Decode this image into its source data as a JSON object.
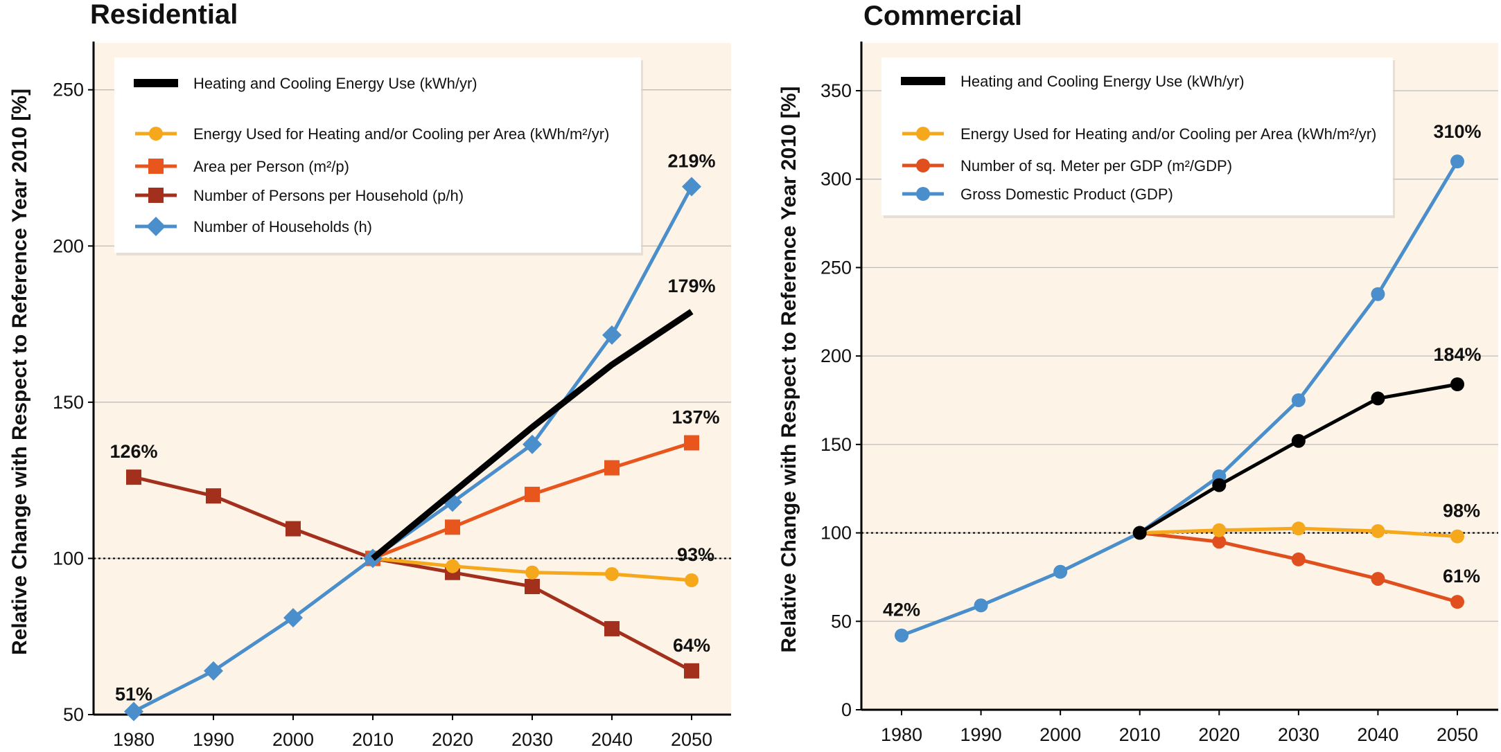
{
  "chart_data": [
    {
      "type": "line",
      "title": "Residential",
      "ylabel": "Relative Change with Respect to Reference Year 2010 [%]",
      "xlabel": "",
      "x": [
        1980,
        1990,
        2000,
        2010,
        2020,
        2030,
        2040,
        2050
      ],
      "ylim": [
        50,
        265
      ],
      "yticks": [
        50,
        100,
        150,
        200,
        250
      ],
      "reference_line": 100,
      "background": "#fdf3e6",
      "series": [
        {
          "name": "Heating and Cooling Energy Use (kWh/yr)",
          "color": "#000000",
          "marker": "none",
          "x": [
            2010,
            2020,
            2030,
            2040,
            2050
          ],
          "values": [
            100,
            121,
            142,
            162,
            179
          ]
        },
        {
          "name": "Energy Used for Heating and/or Cooling per Area (kWh/m²/yr)",
          "color": "#f5a81c",
          "marker": "circle",
          "x": [
            2010,
            2020,
            2030,
            2040,
            2050
          ],
          "values": [
            100,
            97.5,
            95.5,
            95,
            93
          ]
        },
        {
          "name": "Area per Person (m²/p)",
          "color": "#e8561e",
          "marker": "square",
          "x": [
            2010,
            2020,
            2030,
            2040,
            2050
          ],
          "values": [
            100,
            110,
            120.5,
            129,
            137
          ]
        },
        {
          "name": "Number of Persons per Household (p/h)",
          "color": "#a3301d",
          "marker": "square",
          "x": [
            1980,
            1990,
            2000,
            2010,
            2020,
            2030,
            2040,
            2050
          ],
          "values": [
            126,
            120,
            109.5,
            100,
            95.5,
            91,
            77.5,
            64
          ]
        },
        {
          "name": "Number of Households (h)",
          "color": "#4a8fcc",
          "marker": "diamond",
          "x": [
            1980,
            1990,
            2000,
            2010,
            2020,
            2030,
            2040,
            2050
          ],
          "values": [
            51,
            64,
            81,
            100,
            118,
            136.5,
            171.5,
            219
          ]
        }
      ],
      "annotations": [
        {
          "text": "219%",
          "x": 2050,
          "y": 219
        },
        {
          "text": "179%",
          "x": 2050,
          "y": 179
        },
        {
          "text": "137%",
          "x": 2050,
          "y": 137
        },
        {
          "text": "93%",
          "x": 2050,
          "y": 93
        },
        {
          "text": "64%",
          "x": 2050,
          "y": 64
        },
        {
          "text": "126%",
          "x": 1980,
          "y": 126
        },
        {
          "text": "51%",
          "x": 1980,
          "y": 51
        }
      ]
    },
    {
      "type": "line",
      "title": "Commercial",
      "ylabel": "Relative Change with Respect to Reference Year 2010 [%]",
      "xlabel": "",
      "x": [
        1980,
        1990,
        2000,
        2010,
        2020,
        2030,
        2040,
        2050
      ],
      "ylim": [
        0,
        377
      ],
      "yticks": [
        0,
        50,
        100,
        150,
        200,
        250,
        300,
        350
      ],
      "reference_line": 100,
      "background": "#fdf3e6",
      "series": [
        {
          "name": "Heating and Cooling Energy Use (kWh/yr)",
          "color": "#000000",
          "marker": "circle",
          "x": [
            2010,
            2020,
            2030,
            2040,
            2050
          ],
          "values": [
            100,
            127,
            152,
            176,
            184
          ]
        },
        {
          "name": "Energy Used for Heating and/or Cooling per Area (kWh/m²/yr)",
          "color": "#f5a81c",
          "marker": "circle",
          "x": [
            2010,
            2020,
            2030,
            2040,
            2050
          ],
          "values": [
            100,
            101.5,
            102.5,
            101,
            98
          ]
        },
        {
          "name": "Number of sq. Meter per GDP (m²/GDP)",
          "color": "#e0501e",
          "marker": "circle",
          "x": [
            2010,
            2020,
            2030,
            2040,
            2050
          ],
          "values": [
            100,
            95,
            85,
            74,
            61
          ]
        },
        {
          "name": "Gross Domestic Product (GDP)",
          "color": "#4a8fcc",
          "marker": "circle",
          "x": [
            1980,
            1990,
            2000,
            2010,
            2020,
            2030,
            2040,
            2050
          ],
          "values": [
            42,
            59,
            78,
            100,
            132,
            175,
            235,
            310
          ]
        }
      ],
      "annotations": [
        {
          "text": "310%",
          "x": 2050,
          "y": 310
        },
        {
          "text": "184%",
          "x": 2050,
          "y": 184
        },
        {
          "text": "98%",
          "x": 2050,
          "y": 98
        },
        {
          "text": "61%",
          "x": 2050,
          "y": 61
        },
        {
          "text": "42%",
          "x": 1980,
          "y": 42
        }
      ]
    }
  ]
}
